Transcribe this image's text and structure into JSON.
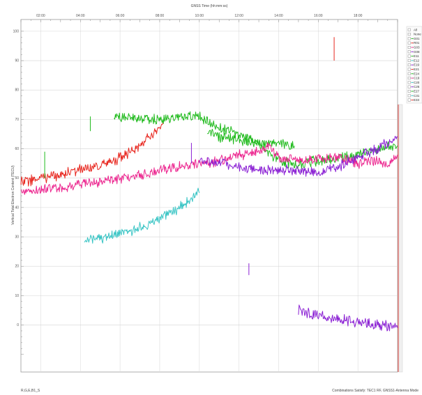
{
  "chart_data": {
    "type": "line",
    "title": "GNSS Time (hh:mm:ss)",
    "ylabel": "Vertical Total Electron Content (TECU)",
    "x_tick_labels": [
      "02:00",
      "04:00",
      "06:00",
      "08:00",
      "10:00",
      "12:00",
      "14:00",
      "16:00",
      "18:00"
    ],
    "y_tick_labels": [
      "100",
      "90",
      "80",
      "70",
      "60",
      "50",
      "40",
      "30",
      "20",
      "10",
      "0"
    ],
    "xlim": [
      0,
      19
    ],
    "ylim": [
      -16,
      104
    ],
    "grid": true,
    "legend_position": "right",
    "legend": [
      "All",
      "None",
      "G01",
      "R01",
      "G03",
      "G08",
      "E11",
      "E12",
      "E19",
      "E21",
      "E24",
      "C19",
      "C20",
      "C26",
      "E27",
      "C31",
      "E33"
    ],
    "series": [
      {
        "name": "red",
        "color": "#e8261e",
        "x": [
          0,
          1,
          2,
          3,
          4,
          5,
          6,
          7,
          7.2
        ],
        "y": [
          48.5,
          50,
          51,
          53,
          54,
          57,
          61,
          67,
          69
        ]
      },
      {
        "name": "green",
        "color": "#1fba1c",
        "x": [
          4.7,
          5,
          6,
          7,
          8,
          9,
          9.5,
          10,
          11,
          12,
          12.5,
          13,
          14,
          15,
          16,
          17,
          18,
          19
        ],
        "y": [
          71,
          71,
          70.5,
          70,
          70.5,
          71,
          69,
          67,
          65,
          62,
          58,
          56,
          55,
          56,
          57,
          58,
          60,
          61
        ]
      },
      {
        "name": "green-tail",
        "color": "#1fba1c",
        "x": [
          9.4,
          10,
          11,
          12,
          13,
          13.8
        ],
        "y": [
          66,
          64,
          63,
          62,
          62,
          61
        ]
      },
      {
        "name": "pink",
        "color": "#ec268f",
        "x": [
          0,
          1,
          2,
          3,
          4,
          5,
          6,
          7,
          8,
          9,
          9.5,
          10,
          11,
          12,
          12.5,
          13,
          14,
          15,
          16,
          17,
          18,
          18.5,
          19
        ],
        "y": [
          45,
          46,
          47,
          48,
          49,
          50,
          51,
          52.5,
          54,
          55,
          55,
          56,
          58,
          59,
          61,
          57,
          56,
          56.5,
          57,
          55,
          56,
          55,
          58
        ]
      },
      {
        "name": "purple-1",
        "color": "#8b21d4",
        "x": [
          9,
          10,
          11,
          12,
          13,
          14,
          15,
          16,
          17,
          18,
          19
        ],
        "y": [
          56,
          55,
          54,
          53,
          53,
          52.5,
          52,
          54,
          57,
          60,
          64
        ]
      },
      {
        "name": "purple-2",
        "color": "#8b21d4",
        "x": [
          14,
          15,
          16,
          17,
          18,
          19
        ],
        "y": [
          5,
          3,
          2,
          1,
          0,
          -1
        ]
      },
      {
        "name": "cyan",
        "color": "#37c4c4",
        "x": [
          3.2,
          4,
          5,
          6,
          7,
          8,
          9
        ],
        "y": [
          29,
          29.5,
          31,
          33,
          36,
          40,
          45
        ]
      }
    ],
    "spikes": [
      {
        "x": 1.2,
        "y0": 50,
        "y1": 59,
        "color": "#1fba1c"
      },
      {
        "x": 3.5,
        "y0": 66,
        "y1": 71,
        "color": "#1fba1c"
      },
      {
        "x": 8.6,
        "y0": 55,
        "y1": 62,
        "color": "#8b21d4"
      },
      {
        "x": 11.5,
        "y0": 17,
        "y1": 21,
        "color": "#8b21d4"
      },
      {
        "x": 15.8,
        "y0": 90,
        "y1": 98,
        "color": "#e8261e"
      }
    ]
  },
  "footer": {
    "left": "R,G,E,B1_S",
    "right": "Combinations Satisfy: TEC1 RF, GNSS1-Antenna Mode"
  }
}
